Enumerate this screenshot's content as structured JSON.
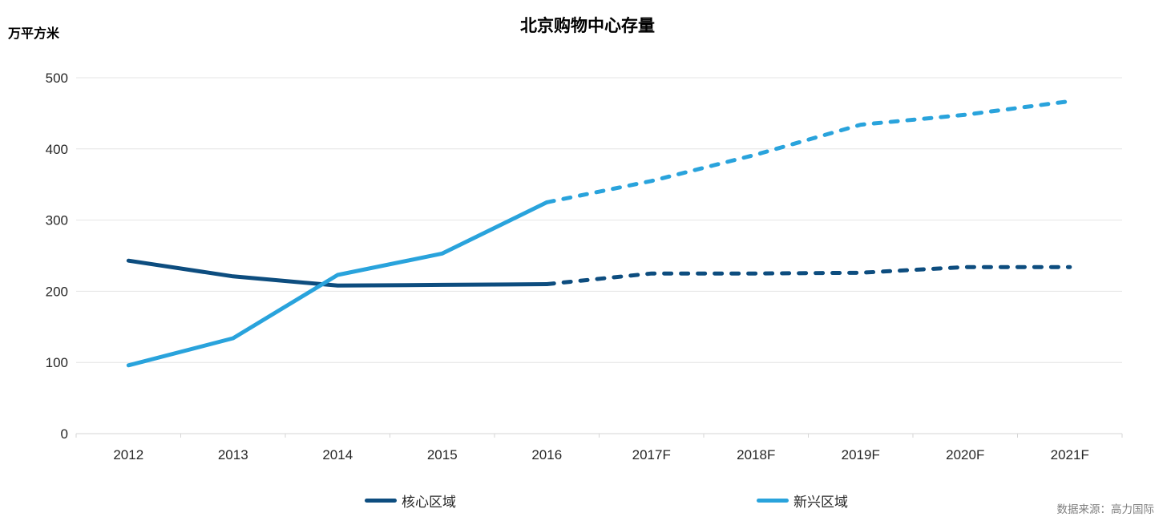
{
  "title": "北京购物中心存量",
  "unit_label": "万平方米",
  "source": "数据来源：高力国际",
  "legend": {
    "items": [
      {
        "label": "核心区域",
        "color": "#0d4d7f"
      },
      {
        "label": "新兴区域",
        "color": "#29a3dc"
      }
    ]
  },
  "chart_data": {
    "type": "line",
    "title": "北京购物中心存量",
    "ylabel": "万平方米",
    "categories": [
      "2012",
      "2013",
      "2014",
      "2015",
      "2016",
      "2017F",
      "2018F",
      "2019F",
      "2020F",
      "2021F"
    ],
    "y_ticks": [
      0,
      100,
      200,
      300,
      400,
      500
    ],
    "ylim": [
      0,
      500
    ],
    "grid": "horizontal",
    "gridline_color": "#e4e4e4",
    "axis_line_color": "#d6d6d6",
    "tick_label_color": "#262626",
    "legend_position": "bottom",
    "forecast_start_index": 4,
    "forecast_style": "dashed",
    "series": [
      {
        "name": "核心区域",
        "color": "#0d4d7f",
        "values": [
          243,
          221,
          208,
          209,
          210,
          225,
          225,
          226,
          234,
          234
        ]
      },
      {
        "name": "新兴区域",
        "color": "#29a3dc",
        "values": [
          96,
          134,
          223,
          253,
          325,
          355,
          392,
          434,
          448,
          467
        ]
      }
    ]
  }
}
